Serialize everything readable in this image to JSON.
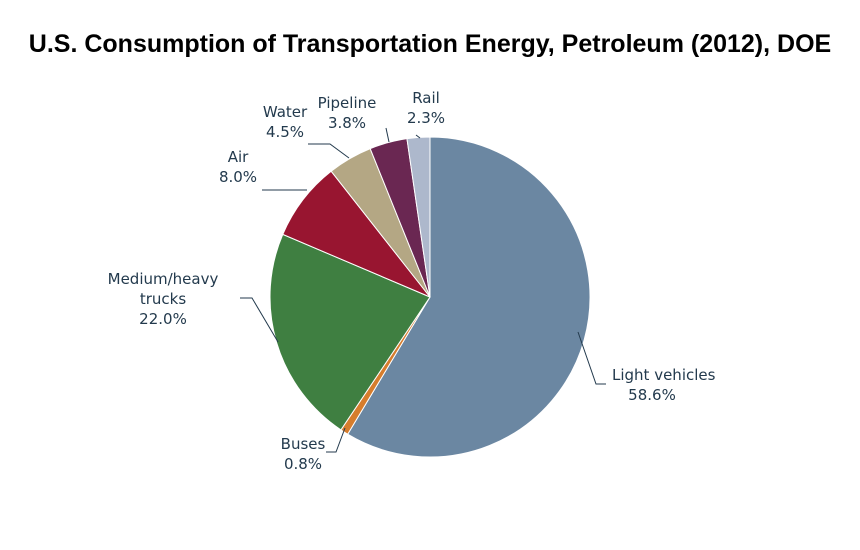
{
  "chart_data": {
    "type": "pie",
    "title": "U.S. Consumption of Transportation Energy, Petroleum (2012), DOE",
    "slices": [
      {
        "name": "Light vehicles",
        "label_lines": [
          "Light vehicles"
        ],
        "value_text": "58.6%",
        "value": 58.6,
        "color": "#6b87a2"
      },
      {
        "name": "Buses",
        "label_lines": [
          "Buses"
        ],
        "value_text": "0.8%",
        "value": 0.8,
        "color": "#d67d2d"
      },
      {
        "name": "Medium/heavy trucks",
        "label_lines": [
          "Medium/heavy",
          "trucks"
        ],
        "value_text": "22.0%",
        "value": 22.0,
        "color": "#3f7f41"
      },
      {
        "name": "Air",
        "label_lines": [
          "Air"
        ],
        "value_text": "8.0%",
        "value": 8.0,
        "color": "#981530"
      },
      {
        "name": "Water",
        "label_lines": [
          "Water"
        ],
        "value_text": "4.5%",
        "value": 4.5,
        "color": "#b4a784"
      },
      {
        "name": "Pipeline",
        "label_lines": [
          "Pipeline"
        ],
        "value_text": "3.8%",
        "value": 3.8,
        "color": "#6a2752"
      },
      {
        "name": "Rail",
        "label_lines": [
          "Rail"
        ],
        "value_text": "2.3%",
        "value": 2.3,
        "color": "#adb8cc"
      }
    ]
  }
}
